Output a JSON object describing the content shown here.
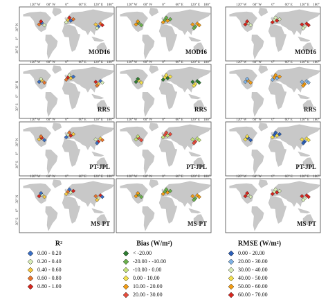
{
  "lon_ticks": [
    "120° W",
    "60° W",
    "0°",
    "60° E",
    "120° E",
    "180°"
  ],
  "lat_ticks": [
    "30° N",
    "0°",
    "30° S"
  ],
  "rows": [
    "MOD16",
    "RRS",
    "PT-JPL",
    "MS-PT"
  ],
  "legends": [
    {
      "title": "R²",
      "entries": [
        {
          "label": "0.00 - 0.20",
          "color": "#3a6fc4"
        },
        {
          "label": "0.20 - 0.40",
          "color": "#d8ecb8"
        },
        {
          "label": "0.40 - 0.60",
          "color": "#f5c842"
        },
        {
          "label": "0.60 - 0.80",
          "color": "#e8742c"
        },
        {
          "label": "0.80 - 1.00",
          "color": "#d7261e"
        }
      ]
    },
    {
      "title": "Bias (W/m²)",
      "entries": [
        {
          "label": "< -20.00",
          "color": "#2e7d32"
        },
        {
          "label": "-20.00 - -10.00",
          "color": "#6ab04c"
        },
        {
          "label": "-10.00 - 0.00",
          "color": "#c4e27a"
        },
        {
          "label": "0.00 - 10.00",
          "color": "#f4e04d"
        },
        {
          "label": "10.00 - 20.00",
          "color": "#f39c12"
        },
        {
          "label": "20.00 - 30.00",
          "color": "#e74c3c"
        }
      ]
    },
    {
      "title": "RMSE (W/m²)",
      "entries": [
        {
          "label": "0.00 - 20.00",
          "color": "#2b5fb8"
        },
        {
          "label": "20.00 - 30.00",
          "color": "#7fb2e5"
        },
        {
          "label": "30.00 - 40.00",
          "color": "#d8ecb8"
        },
        {
          "label": "40.00 - 50.00",
          "color": "#f4e04d"
        },
        {
          "label": "50.00 - 60.00",
          "color": "#f39c12"
        },
        {
          "label": "60.00 - 70.00",
          "color": "#d7261e"
        }
      ]
    }
  ]
}
